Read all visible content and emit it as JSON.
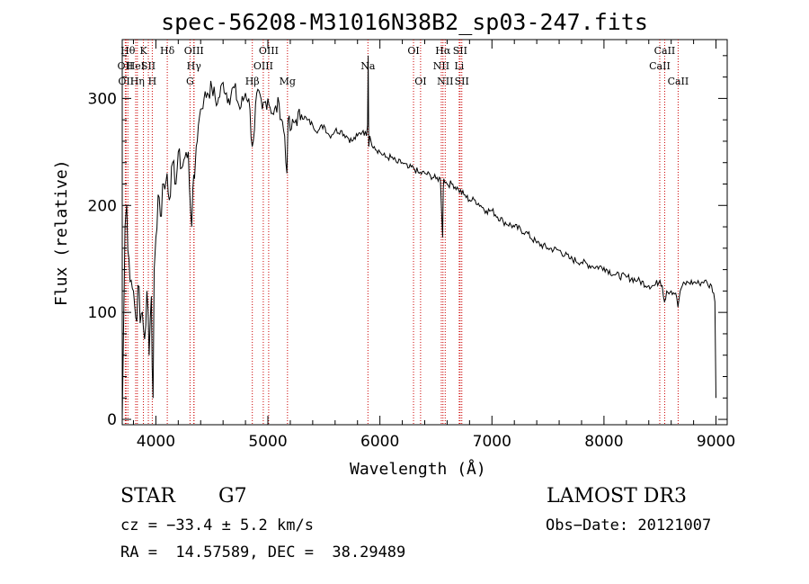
{
  "chart_data": {
    "type": "line",
    "title": "spec-56208-M31016N38B2_sp03-247.fits",
    "xlabel": "Wavelength (Å)",
    "ylabel": "Flux (relative)",
    "xlim": [
      3700,
      9100
    ],
    "ylim": [
      -5,
      355
    ],
    "x_ticks": [
      4000,
      5000,
      6000,
      7000,
      8000,
      9000
    ],
    "y_ticks": [
      0,
      100,
      200,
      300
    ],
    "grid": false,
    "series": [
      {
        "x": [
          3700,
          3710,
          3725,
          3740,
          3760,
          3780,
          3800,
          3820,
          3840,
          3860,
          3880,
          3900,
          3920,
          3940,
          3960,
          3975,
          3985,
          4000,
          4020,
          4040,
          4060,
          4080,
          4100,
          4120,
          4150,
          4180,
          4200,
          4230,
          4260,
          4290,
          4310,
          4320,
          4330,
          4345,
          4360,
          4380,
          4400,
          4430,
          4460,
          4500,
          4550,
          4600,
          4650,
          4700,
          4750,
          4800,
          4830,
          4860,
          4870,
          4900,
          4950,
          5000,
          5050,
          5100,
          5150,
          5170,
          5180,
          5200,
          5250,
          5300,
          5350,
          5400,
          5450,
          5500,
          5550,
          5600,
          5650,
          5700,
          5750,
          5800,
          5850,
          5880,
          5890,
          5895,
          5900,
          5910,
          5920,
          5950,
          6000,
          6050,
          6100,
          6150,
          6200,
          6250,
          6300,
          6350,
          6400,
          6450,
          6500,
          6540,
          6560,
          6565,
          6570,
          6600,
          6650,
          6700,
          6750,
          6800,
          6850,
          6900,
          6950,
          7000,
          7100,
          7200,
          7300,
          7400,
          7500,
          7600,
          7700,
          7800,
          7900,
          8000,
          8100,
          8200,
          8300,
          8400,
          8450,
          8500,
          8520,
          8540,
          8560,
          8600,
          8640,
          8660,
          8680,
          8700,
          8750,
          8800,
          8850,
          8900,
          8930,
          8960,
          8980,
          8990,
          9000
        ],
        "values": [
          0,
          70,
          180,
          200,
          150,
          130,
          120,
          95,
          125,
          90,
          100,
          75,
          120,
          60,
          115,
          20,
          140,
          170,
          210,
          190,
          220,
          215,
          230,
          205,
          240,
          220,
          250,
          235,
          245,
          250,
          195,
          180,
          215,
          225,
          255,
          275,
          290,
          300,
          305,
          310,
          295,
          315,
          300,
          310,
          290,
          305,
          300,
          255,
          260,
          305,
          290,
          300,
          285,
          295,
          265,
          230,
          280,
          270,
          280,
          285,
          280,
          275,
          270,
          275,
          265,
          270,
          270,
          265,
          260,
          265,
          270,
          265,
          275,
          340,
          255,
          265,
          260,
          255,
          250,
          245,
          245,
          240,
          240,
          235,
          235,
          230,
          230,
          228,
          225,
          225,
          170,
          215,
          225,
          220,
          220,
          215,
          210,
          205,
          205,
          200,
          195,
          195,
          185,
          180,
          175,
          165,
          160,
          158,
          150,
          147,
          143,
          142,
          135,
          133,
          130,
          125,
          125,
          130,
          125,
          110,
          120,
          120,
          118,
          105,
          120,
          125,
          128,
          128,
          127,
          130,
          125,
          125,
          118,
          110,
          20
        ]
      }
    ],
    "line_labels": [
      {
        "x": 3750,
        "label": "Hθ",
        "row": 0
      },
      {
        "x": 3727,
        "label": "OII",
        "row": 1
      },
      {
        "x": 3734,
        "label": "OII",
        "row": 2
      },
      {
        "x": 3820,
        "label": "HeI",
        "row": 1
      },
      {
        "x": 3835,
        "label": "Hη",
        "row": 2
      },
      {
        "x": 3889,
        "label": "K",
        "row": 0
      },
      {
        "x": 3933,
        "label": "SII",
        "row": 1
      },
      {
        "x": 3968,
        "label": "H",
        "row": 2
      },
      {
        "x": 4102,
        "label": "Hδ",
        "row": 0
      },
      {
        "x": 4340,
        "label": "OIII",
        "row": 0
      },
      {
        "x": 4340,
        "label": "Hγ",
        "row": 1
      },
      {
        "x": 4305,
        "label": "G",
        "row": 2
      },
      {
        "x": 4861,
        "label": "Hβ",
        "row": 2
      },
      {
        "x": 5007,
        "label": "OIII",
        "row": 0
      },
      {
        "x": 4959,
        "label": "OIII",
        "row": 1
      },
      {
        "x": 5175,
        "label": "Mg",
        "row": 2
      },
      {
        "x": 5893,
        "label": "Na",
        "row": 1
      },
      {
        "x": 6300,
        "label": "OI",
        "row": 0
      },
      {
        "x": 6363,
        "label": "OI",
        "row": 2
      },
      {
        "x": 6563,
        "label": "Hα",
        "row": 0
      },
      {
        "x": 6548,
        "label": "NII",
        "row": 1
      },
      {
        "x": 6583,
        "label": "NII",
        "row": 2
      },
      {
        "x": 6716,
        "label": "SII",
        "row": 0
      },
      {
        "x": 6708,
        "label": "Li",
        "row": 1
      },
      {
        "x": 6731,
        "label": "SII",
        "row": 2
      },
      {
        "x": 8498,
        "label": "CaII",
        "row": 1
      },
      {
        "x": 8542,
        "label": "CaII",
        "row": 0
      },
      {
        "x": 8662,
        "label": "CaII",
        "row": 2
      }
    ],
    "line_color": "#cc0000"
  },
  "info": {
    "class": "STAR",
    "subclass": "G7",
    "survey": "LAMOST DR3",
    "cz": "cz = −33.4 ± 5.2 km/s",
    "coords": "RA =  14.57589, DEC =  38.29489",
    "obs_date": "Obs−Date: 20121007"
  }
}
